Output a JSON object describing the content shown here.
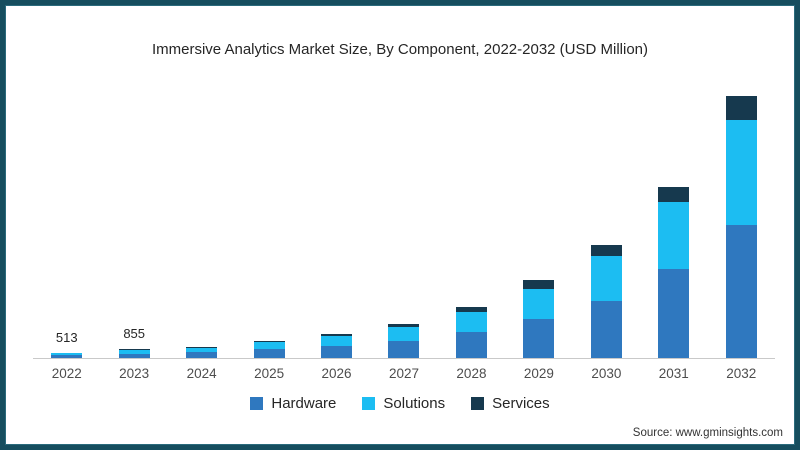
{
  "frame": {
    "border_color": "#164e5e",
    "background_color": "#ffffff"
  },
  "title": "Immersive Analytics Market Size, By Component, 2022-2032 (USD Million)",
  "source_note": "Source: www.gminsights.com",
  "legend": {
    "items": [
      {
        "label": "Hardware",
        "color": "#2f78bf"
      },
      {
        "label": "Solutions",
        "color": "#1cbdf2"
      },
      {
        "label": "Services",
        "color": "#16394e"
      }
    ]
  },
  "chart_data": {
    "type": "bar",
    "stacked": true,
    "title": "Immersive Analytics Market Size, By Component, 2022-2032 (USD Million)",
    "units": "USD Million",
    "categories": [
      "2022",
      "2023",
      "2024",
      "2025",
      "2026",
      "2027",
      "2028",
      "2029",
      "2030",
      "2031",
      "2032"
    ],
    "series": [
      {
        "name": "Hardware",
        "color": "#2f78bf",
        "values": [
          260,
          440,
          590,
          880,
          1240,
          1750,
          2600,
          3900,
          5700,
          8900,
          13300
        ]
      },
      {
        "name": "Solutions",
        "color": "#1cbdf2",
        "values": [
          200,
          335,
          450,
          680,
          950,
          1350,
          2050,
          3000,
          4500,
          6700,
          10500
        ]
      },
      {
        "name": "Services",
        "color": "#16394e",
        "values": [
          53,
          80,
          105,
          155,
          220,
          310,
          450,
          900,
          1100,
          1500,
          2400
        ]
      }
    ],
    "totals": [
      513,
      855,
      1145,
      1715,
      2410,
      3410,
      5100,
      7800,
      11300,
      17100,
      26200
    ],
    "bar_value_labels": [
      "513",
      "855",
      "",
      "",
      "",
      "",
      "",
      "",
      "",
      "",
      ""
    ],
    "xlabel": "",
    "ylabel": "",
    "ylim": [
      0,
      26900
    ],
    "y_axis_visible": false,
    "gridlines": false,
    "legend_position": "bottom",
    "baseline_color": "#c9c9c9"
  }
}
